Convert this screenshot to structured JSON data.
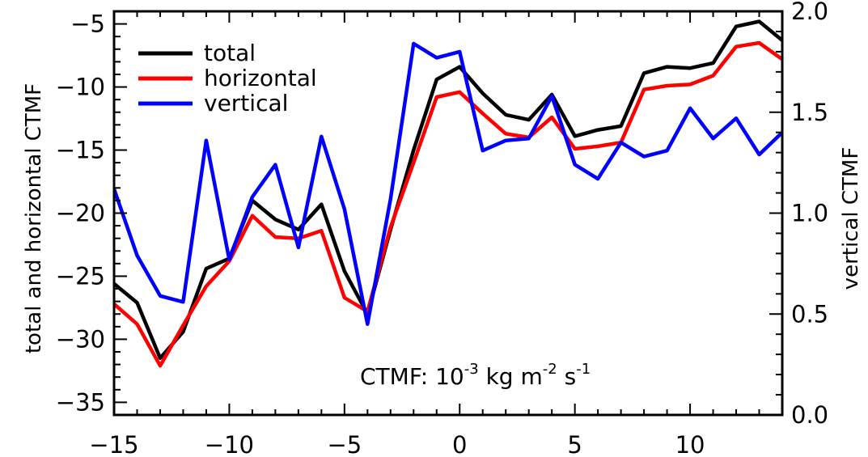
{
  "chart_data": {
    "type": "line",
    "title": "",
    "xlabel": "",
    "ylabel": "total and horizontal CTMF",
    "y2label": "vertical CTMF",
    "annotation": {
      "prefix": "CTMF: 10",
      "exp1": "-3",
      "kg": " kg m",
      "exp2": "-2",
      "s": " s",
      "exp3": "-1"
    },
    "xlim": [
      -15,
      14
    ],
    "ylim": [
      -36,
      -4
    ],
    "y2lim": [
      0.0,
      2.0
    ],
    "x_ticks": [
      -15,
      -10,
      -5,
      0,
      5,
      10
    ],
    "x_tick_labels": [
      "−15",
      "−10",
      "−5",
      "0",
      "5",
      "10"
    ],
    "y_ticks": [
      -35,
      -30,
      -25,
      -20,
      -15,
      -10,
      -5
    ],
    "y_tick_labels": [
      "−35",
      "−30",
      "−25",
      "−20",
      "−15",
      "−10",
      "−5"
    ],
    "y2_ticks": [
      0.0,
      0.5,
      1.0,
      1.5,
      2.0
    ],
    "y2_tick_labels": [
      "0.0",
      "0.5",
      "1.0",
      "1.5",
      "2.0"
    ],
    "legend_placement": "top-left",
    "grid": false,
    "x": [
      -15,
      -14,
      -13,
      -12,
      -11,
      -10,
      -9,
      -8,
      -7,
      -6,
      -5,
      -4,
      -3,
      -2,
      -1,
      0,
      1,
      2,
      3,
      4,
      5,
      6,
      7,
      8,
      9,
      10,
      11,
      12,
      13,
      14
    ],
    "series": [
      {
        "name": "total",
        "axis": "left",
        "color": "#000000",
        "values": [
          -25.6,
          -27.1,
          -31.5,
          -29.4,
          -24.4,
          -23.6,
          -19.0,
          -20.5,
          -21.3,
          -19.3,
          -24.6,
          -28.0,
          -21.3,
          -15.0,
          -9.4,
          -8.4,
          -10.5,
          -12.2,
          -12.6,
          -10.6,
          -13.9,
          -13.4,
          -13.1,
          -8.9,
          -8.4,
          -8.5,
          -8.1,
          -5.2,
          -4.8,
          -6.3
        ]
      },
      {
        "name": "horizontal",
        "axis": "left",
        "color": "#ff0000",
        "values": [
          -27.2,
          -28.8,
          -32.1,
          -28.9,
          -25.8,
          -23.8,
          -20.2,
          -21.9,
          -22.0,
          -21.4,
          -26.7,
          -27.8,
          -21.1,
          -16.0,
          -10.8,
          -10.4,
          -12.1,
          -13.7,
          -14.0,
          -12.4,
          -14.9,
          -14.7,
          -14.4,
          -10.2,
          -9.9,
          -9.8,
          -9.1,
          -6.8,
          -6.5,
          -7.8
        ]
      },
      {
        "name": "vertical",
        "axis": "right",
        "color": "#0000ff",
        "values": [
          1.12,
          0.79,
          0.59,
          0.56,
          1.36,
          0.77,
          1.08,
          1.24,
          0.83,
          1.38,
          1.02,
          0.45,
          1.07,
          1.84,
          1.77,
          1.8,
          1.31,
          1.36,
          1.37,
          1.58,
          1.24,
          1.17,
          1.35,
          1.28,
          1.31,
          1.52,
          1.37,
          1.47,
          1.29,
          1.4
        ]
      }
    ]
  }
}
